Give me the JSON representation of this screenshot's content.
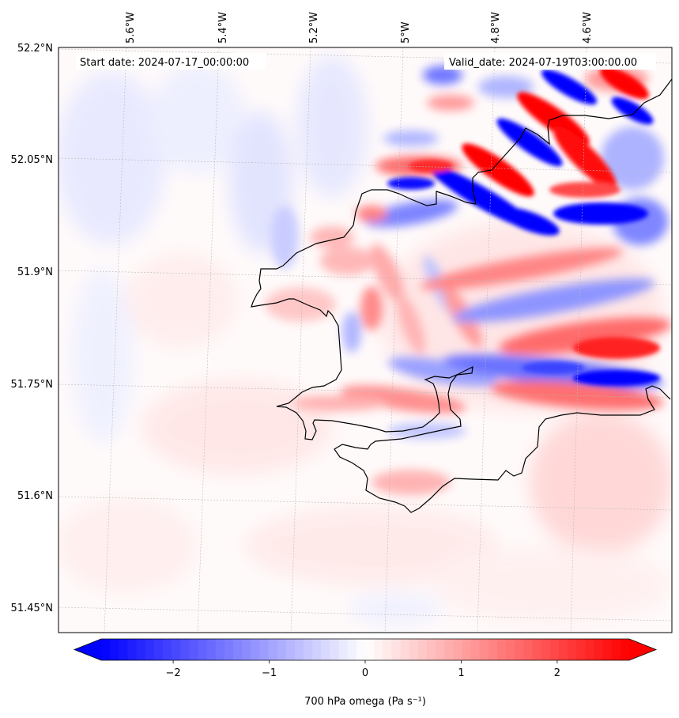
{
  "map": {
    "start_label": "Start date: 2024-07-17_00:00:00",
    "valid_label": "Valid_date: 2024-07-19T03:00:00.00",
    "lon_labels": [
      "5.6°W",
      "5.4°W",
      "5.2°W",
      "5°W",
      "4.8°W",
      "4.6°W"
    ],
    "lat_labels": [
      "52.2°N",
      "52.05°N",
      "51.9°N",
      "51.75°N",
      "51.6°N",
      "51.45°N"
    ],
    "coastline_color": "#000000",
    "gridlines": true
  },
  "colorbar": {
    "label": "700 hPa omega (Pa s⁻¹)",
    "ticks": [
      "−2",
      "−1",
      "0",
      "1",
      "2"
    ],
    "range": [
      -2.75,
      2.75
    ],
    "cmap": "bwr",
    "extend": "both",
    "colors": {
      "negative": "#0000ff",
      "zero": "#ffffff",
      "positive": "#ff0000"
    }
  }
}
